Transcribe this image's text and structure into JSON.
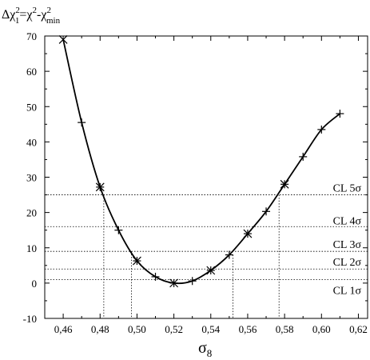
{
  "chart_data": {
    "type": "line",
    "title_parts": {
      "delta": "Δχ",
      "sup1": "2",
      "sub1": "1",
      "eq": "=χ",
      "sup2": "2",
      "minus": "-χ",
      "sup3": "2",
      "sub3": "min"
    },
    "xlabel_parts": {
      "main": "σ",
      "sub": "8"
    },
    "xlim": [
      0.45,
      0.625
    ],
    "ylim": [
      -10,
      70
    ],
    "x_ticks": [
      0.46,
      0.48,
      0.5,
      0.52,
      0.54,
      0.56,
      0.58,
      0.6,
      0.62
    ],
    "x_tick_labels": [
      "0,46",
      "0,48",
      "0,50",
      "0,52",
      "0,54",
      "0,56",
      "0,58",
      "0,60",
      "0,62"
    ],
    "y_ticks": [
      -10,
      0,
      10,
      20,
      30,
      40,
      50,
      60,
      70
    ],
    "y_tick_labels": [
      "-10",
      "0",
      "10",
      "20",
      "30",
      "40",
      "50",
      "60",
      "70"
    ],
    "curve": {
      "x": [
        0.46,
        0.47,
        0.48,
        0.49,
        0.5,
        0.51,
        0.52,
        0.53,
        0.54,
        0.55,
        0.56,
        0.57,
        0.58,
        0.59,
        0.6,
        0.61
      ],
      "y": [
        69.0,
        45.5,
        27.2,
        15.0,
        6.3,
        1.8,
        0.0,
        0.6,
        3.6,
        8.0,
        14.0,
        20.3,
        28.0,
        35.8,
        43.5,
        48.0
      ]
    },
    "markers": {
      "cross_x": [
        0.46,
        0.48,
        0.5,
        0.52,
        0.54,
        0.56,
        0.58
      ],
      "cross_y": [
        69.0,
        27.2,
        6.3,
        0.0,
        3.6,
        14.0,
        28.0
      ],
      "plus_x": [
        0.47,
        0.48,
        0.49,
        0.5,
        0.51,
        0.52,
        0.53,
        0.54,
        0.55,
        0.56,
        0.57,
        0.58,
        0.59,
        0.6,
        0.61
      ],
      "plus_y": [
        45.5,
        27.2,
        15.0,
        6.3,
        1.8,
        0.0,
        0.6,
        3.6,
        8.0,
        14.0,
        20.3,
        28.0,
        35.8,
        43.5,
        48.0
      ]
    },
    "confidence_levels": [
      {
        "label": "CL 1σ",
        "y": 1
      },
      {
        "label": "CL 2σ",
        "y": 4
      },
      {
        "label": "CL 3σ",
        "y": 9
      },
      {
        "label": "CL 4σ",
        "y": 16
      },
      {
        "label": "CL 5σ",
        "y": 25
      }
    ],
    "vertical_dotted": [
      {
        "x": 0.482,
        "y": 25
      },
      {
        "x": 0.497,
        "y": 9
      },
      {
        "x": 0.552,
        "y": 8
      },
      {
        "x": 0.577,
        "y": 25
      }
    ]
  }
}
